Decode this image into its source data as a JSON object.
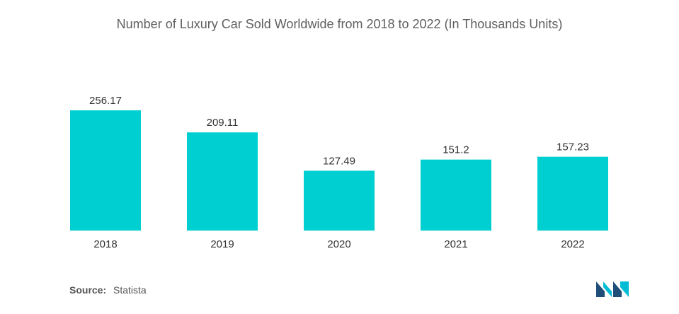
{
  "chart_data": {
    "type": "bar",
    "title": "Number of Luxury Car Sold Worldwide from 2018 to 2022 (In Thousands Units)",
    "categories": [
      "2018",
      "2019",
      "2020",
      "2021",
      "2022"
    ],
    "values": [
      256.17,
      209.11,
      127.49,
      151.2,
      157.23
    ],
    "value_labels": [
      "256.17",
      "209.11",
      "127.49",
      "151.2",
      "157.23"
    ],
    "xlabel": "",
    "ylabel": "",
    "ylim": [
      0,
      256.17
    ],
    "grid": false,
    "legend": "none",
    "bar_color": "#00cfd1"
  },
  "source": {
    "label": "Source:",
    "value": "Statista"
  },
  "colors": {
    "logo_dark": "#1f4e79",
    "logo_teal": "#00bcd4"
  }
}
